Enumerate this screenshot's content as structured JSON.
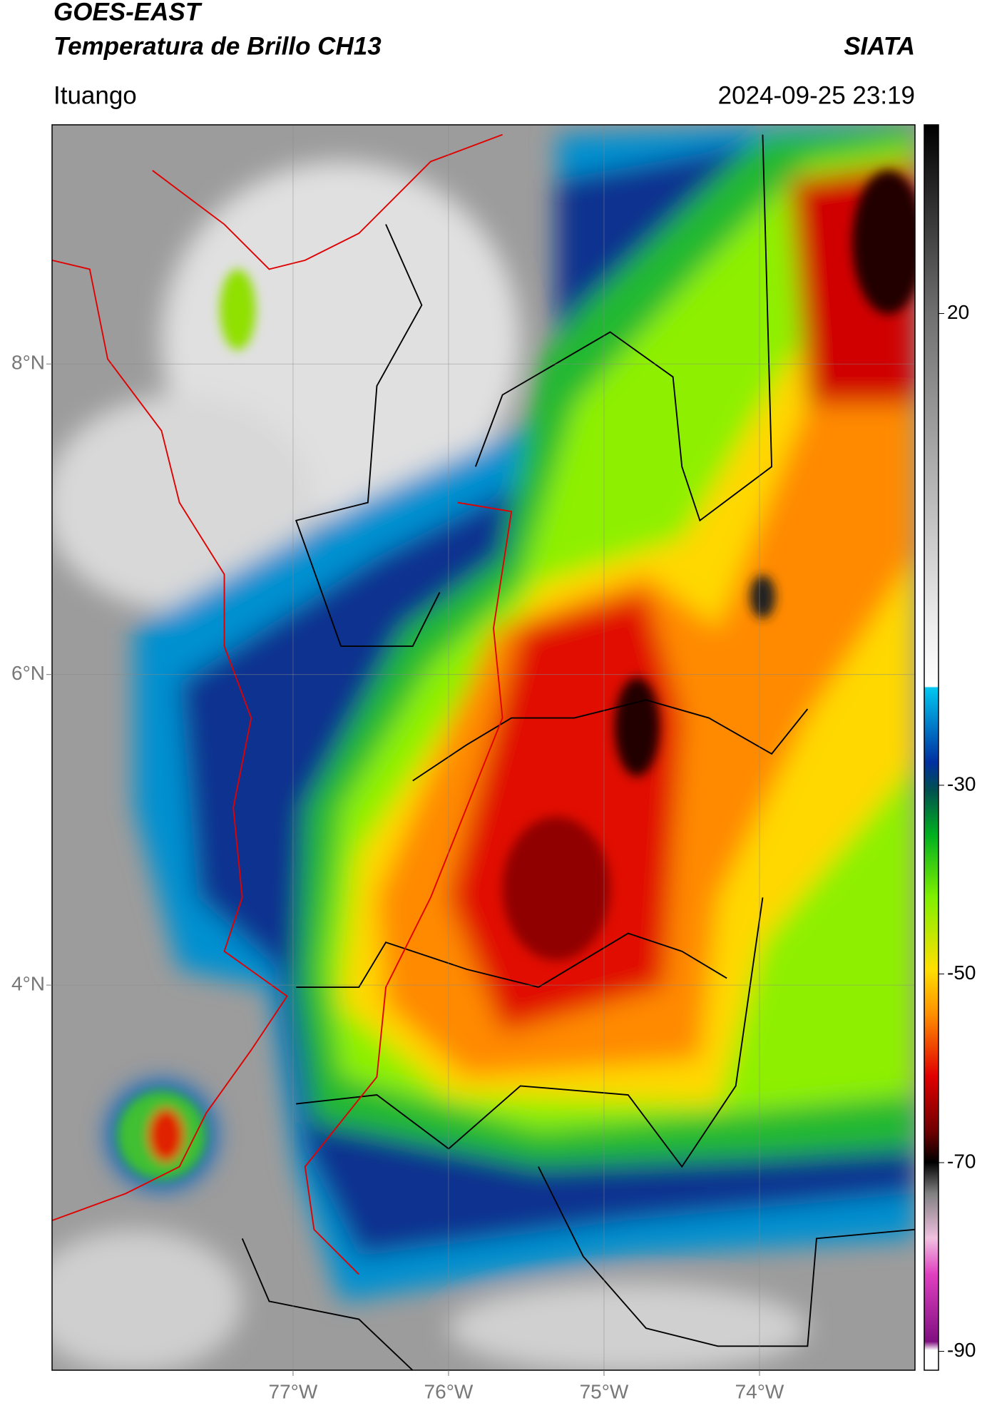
{
  "header": {
    "title": "GOES-EAST",
    "subtitle": "Temperatura de Brillo CH13",
    "source": "SIATA",
    "location": "Ituango",
    "timestamp": "2024-09-25 23:19"
  },
  "map": {
    "lonlim": [
      -78.55,
      -73.0
    ],
    "latlim": [
      1.52,
      9.54
    ],
    "lonticks": [
      {
        "value": -77,
        "label": "77°W"
      },
      {
        "value": -76,
        "label": "76°W"
      },
      {
        "value": -75,
        "label": "75°W"
      },
      {
        "value": -74,
        "label": "74°W"
      }
    ],
    "latticks": [
      {
        "value": 8,
        "label": "8°N"
      },
      {
        "value": 6,
        "label": "6°N"
      },
      {
        "value": 4,
        "label": "4°N"
      }
    ]
  },
  "colorbar": {
    "lim": [
      -92,
      40
    ],
    "ticks": [
      20,
      -30,
      -50,
      -70,
      -90
    ]
  }
}
